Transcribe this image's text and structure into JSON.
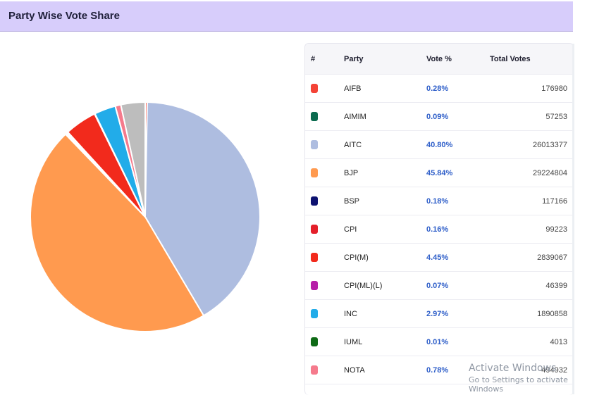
{
  "header": {
    "title": "Party Wise Vote Share"
  },
  "table": {
    "columns": [
      "#",
      "Party",
      "Vote %",
      "Total Votes"
    ],
    "rows": [
      {
        "color": "#f44336",
        "party": "AIFB",
        "pct": "0.28%",
        "votes": "176980"
      },
      {
        "color": "#0b6b4f",
        "party": "AIMIM",
        "pct": "0.09%",
        "votes": "57253"
      },
      {
        "color": "#aebde0",
        "party": "AITC",
        "pct": "40.80%",
        "votes": "26013377"
      },
      {
        "color": "#ff9a4f",
        "party": "BJP",
        "pct": "45.84%",
        "votes": "29224804"
      },
      {
        "color": "#0d1270",
        "party": "BSP",
        "pct": "0.18%",
        "votes": "117166"
      },
      {
        "color": "#e41f2a",
        "party": "CPI",
        "pct": "0.16%",
        "votes": "99223"
      },
      {
        "color": "#f22a1c",
        "party": "CPI(M)",
        "pct": "4.45%",
        "votes": "2839067"
      },
      {
        "color": "#b61fa8",
        "party": "CPI(ML)(L)",
        "pct": "0.07%",
        "votes": "46399"
      },
      {
        "color": "#22ace9",
        "party": "INC",
        "pct": "2.97%",
        "votes": "1890858"
      },
      {
        "color": "#0e6a16",
        "party": "IUML",
        "pct": "0.01%",
        "votes": "4013"
      },
      {
        "color": "#f57a8c",
        "party": "NOTA",
        "pct": "0.78%",
        "votes": "494932"
      }
    ]
  },
  "chart_data": {
    "type": "pie",
    "title": "Party Wise Vote Share",
    "slices": [
      {
        "label": "AIFB",
        "value": 0.28,
        "color": "#f44336"
      },
      {
        "label": "AITC",
        "value": 40.8,
        "color": "#aebde0"
      },
      {
        "label": "BJP",
        "value": 45.84,
        "color": "#ff9a4f"
      },
      {
        "label": "AIMIM",
        "value": 0.09,
        "color": "#0b6b4f"
      },
      {
        "label": "BSP",
        "value": 0.18,
        "color": "#0d1270"
      },
      {
        "label": "CPI",
        "value": 0.16,
        "color": "#e41f2a"
      },
      {
        "label": "CPI(M)",
        "value": 4.45,
        "color": "#f22a1c"
      },
      {
        "label": "CPI(ML)(L)",
        "value": 0.07,
        "color": "#b61fa8"
      },
      {
        "label": "INC",
        "value": 2.97,
        "color": "#22ace9"
      },
      {
        "label": "IUML",
        "value": 0.01,
        "color": "#0e6a16"
      },
      {
        "label": "NOTA",
        "value": 0.78,
        "color": "#f57a8c"
      },
      {
        "label": "",
        "value": 3.37,
        "color": "#bdbdbd"
      }
    ]
  },
  "watermark": {
    "line1": "Activate Windows",
    "line2": "Go to Settings to activate Windows"
  }
}
